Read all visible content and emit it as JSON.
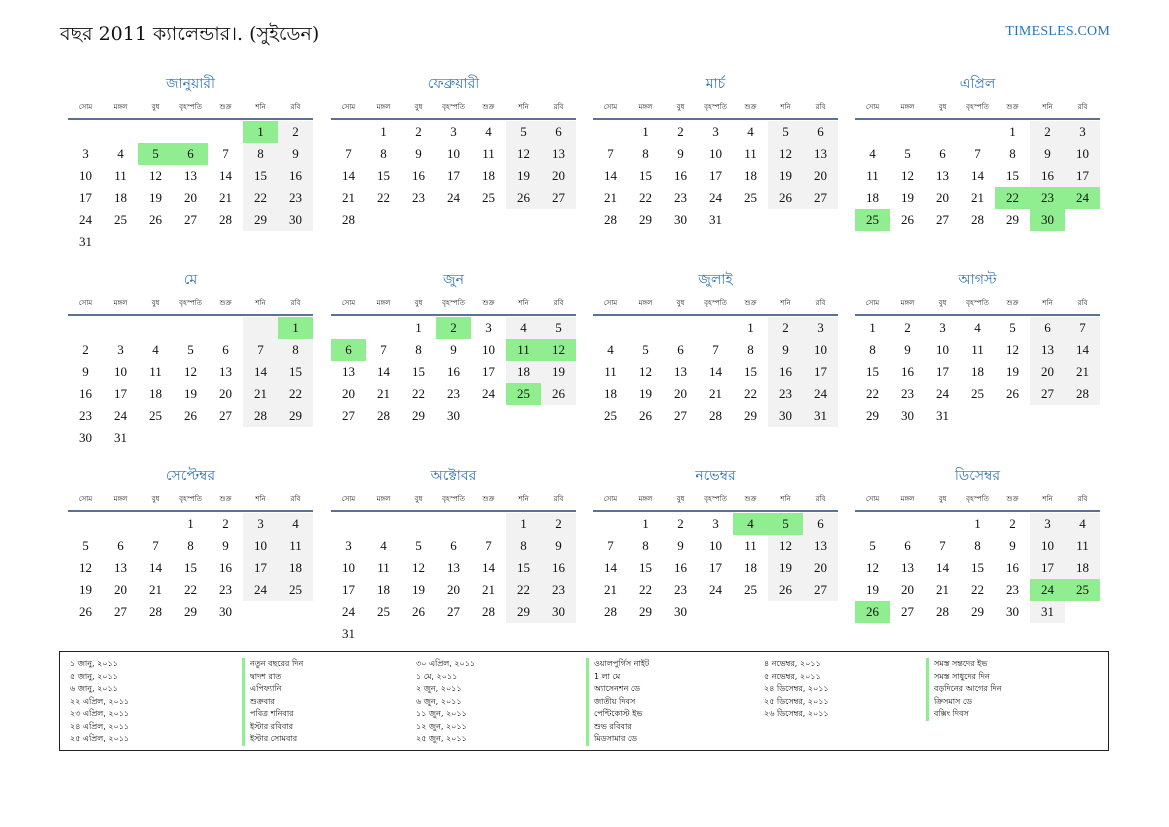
{
  "header": {
    "title": "বছর 2011 ক্যালেন্ডার।. (সুইডেন)",
    "site": "TIMESLES.COM"
  },
  "weekdays": [
    "সোম",
    "মঙ্গল",
    "বুধ",
    "বৃহস্পতি",
    "শুক্র",
    "শনি",
    "রবি"
  ],
  "months": [
    {
      "name": "জানুয়ারী",
      "offset": 5,
      "days": 31,
      "holidays": [
        1,
        5,
        6
      ]
    },
    {
      "name": "ফেব্রুয়ারী",
      "offset": 1,
      "days": 28,
      "holidays": []
    },
    {
      "name": "মার্চ",
      "offset": 1,
      "days": 31,
      "holidays": []
    },
    {
      "name": "এপ্রিল",
      "offset": 4,
      "days": 30,
      "holidays": [
        22,
        23,
        24,
        25,
        30
      ]
    },
    {
      "name": "মে",
      "offset": 6,
      "days": 31,
      "holidays": [
        1
      ]
    },
    {
      "name": "জুন",
      "offset": 2,
      "days": 30,
      "holidays": [
        2,
        6,
        11,
        12,
        25
      ]
    },
    {
      "name": "জুলাই",
      "offset": 4,
      "days": 31,
      "holidays": []
    },
    {
      "name": "আগস্ট",
      "offset": 0,
      "days": 31,
      "holidays": []
    },
    {
      "name": "সেপ্টেম্বর",
      "offset": 3,
      "days": 30,
      "holidays": []
    },
    {
      "name": "অক্টোবর",
      "offset": 5,
      "days": 31,
      "holidays": []
    },
    {
      "name": "নভেম্বর",
      "offset": 1,
      "days": 30,
      "holidays": [
        4,
        5
      ]
    },
    {
      "name": "ডিসেম্বর",
      "offset": 3,
      "days": 31,
      "holidays": [
        24,
        25,
        26
      ]
    }
  ],
  "legend": [
    [
      {
        "date": "১ জানু, ২০১১",
        "name": "নতুন বছরের দিন"
      },
      {
        "date": "৫ জানু, ২০১১",
        "name": "দ্বাদশ রাত"
      },
      {
        "date": "৬ জানু, ২০১১",
        "name": "এপিফ্যানি"
      },
      {
        "date": "২২ এপ্রিল, ২০১১",
        "name": "শুক্রবার"
      },
      {
        "date": "২৩ এপ্রিল, ২০১১",
        "name": "পবিত্র শনিবার"
      },
      {
        "date": "২৪ এপ্রিল, ২০১১",
        "name": "ইস্টার রবিবার"
      },
      {
        "date": "২৫ এপ্রিল, ২০১১",
        "name": "ইস্টার সোমবার"
      }
    ],
    [
      {
        "date": "৩০ এপ্রিল, ২০১১",
        "name": "ওয়ালপুর্গিস নাইট"
      },
      {
        "date": "১ মে, ২০১১",
        "name": "1 লা মে"
      },
      {
        "date": "২ জুন, ২০১১",
        "name": "অ্যাসেনশন ডে"
      },
      {
        "date": "৬ জুন, ২০১১",
        "name": "জাতীয় দিবস"
      },
      {
        "date": "১১ জুন, ২০১১",
        "name": "পেন্টিকোস্ট ইভ"
      },
      {
        "date": "১২ জুন, ২০১১",
        "name": "শুভ রবিবার"
      },
      {
        "date": "২৫ জুন, ২০১১",
        "name": "মিডসামার ডে"
      }
    ],
    [
      {
        "date": "৪ নভেম্বর, ২০১১",
        "name": "সমস্ত সন্তদের ইভ"
      },
      {
        "date": "৫ নভেম্বর, ২০১১",
        "name": "সমস্ত সাধুদের দিন"
      },
      {
        "date": "২৪ ডিসেম্বর, ২০১১",
        "name": "বড়দিনের আগের দিন"
      },
      {
        "date": "২৫ ডিসেম্বর, ২০১১",
        "name": "ক্রিসমাস ডে"
      },
      {
        "date": "২৬ ডিসেম্বর, ২০১১",
        "name": "বক্সিং দিবস"
      }
    ]
  ]
}
